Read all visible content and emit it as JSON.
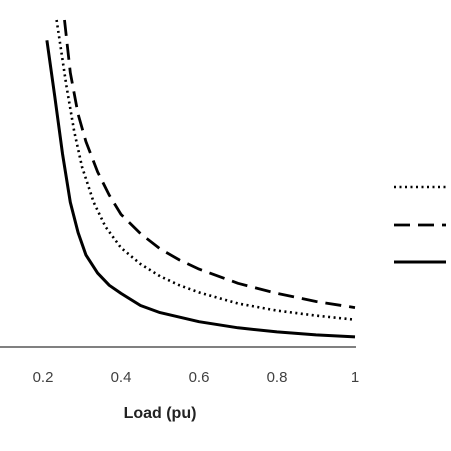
{
  "chart_data": {
    "type": "line",
    "title": "",
    "xlabel": "Load (pu)",
    "ylabel": "",
    "xlim": [
      0.1,
      1.0
    ],
    "ylim": [
      0,
      320
    ],
    "x_ticks": [
      "0.2",
      "0.4",
      "0.6",
      "0.8",
      "1"
    ],
    "grid": false,
    "legend": {
      "placement": "right",
      "entries": [
        "",
        "",
        ""
      ]
    },
    "series": [
      {
        "style": "dotted",
        "color": "#000000",
        "points": [
          [
            0.235,
            320
          ],
          [
            0.26,
            255
          ],
          [
            0.28,
            210
          ],
          [
            0.3,
            175
          ],
          [
            0.33,
            140
          ],
          [
            0.36,
            116
          ],
          [
            0.4,
            95
          ],
          [
            0.45,
            79
          ],
          [
            0.5,
            67
          ],
          [
            0.55,
            58
          ],
          [
            0.6,
            51
          ],
          [
            0.7,
            40
          ],
          [
            0.8,
            33
          ],
          [
            0.9,
            28
          ],
          [
            1.0,
            24
          ]
        ]
      },
      {
        "style": "dashed",
        "color": "#000000",
        "points": [
          [
            0.255,
            320
          ],
          [
            0.27,
            268
          ],
          [
            0.29,
            227
          ],
          [
            0.31,
            200
          ],
          [
            0.34,
            170
          ],
          [
            0.37,
            147
          ],
          [
            0.4,
            128
          ],
          [
            0.45,
            109
          ],
          [
            0.5,
            94
          ],
          [
            0.55,
            83
          ],
          [
            0.6,
            74
          ],
          [
            0.7,
            60
          ],
          [
            0.8,
            50
          ],
          [
            0.9,
            42
          ],
          [
            1.0,
            36
          ]
        ]
      },
      {
        "style": "solid",
        "color": "#000000",
        "points": [
          [
            0.21,
            300
          ],
          [
            0.23,
            245
          ],
          [
            0.25,
            188
          ],
          [
            0.27,
            140
          ],
          [
            0.29,
            110
          ],
          [
            0.31,
            88
          ],
          [
            0.34,
            70
          ],
          [
            0.37,
            58
          ],
          [
            0.4,
            50
          ],
          [
            0.45,
            38
          ],
          [
            0.5,
            31
          ],
          [
            0.6,
            22
          ],
          [
            0.7,
            16
          ],
          [
            0.8,
            12
          ],
          [
            0.9,
            9
          ],
          [
            1.0,
            7
          ]
        ]
      }
    ]
  }
}
